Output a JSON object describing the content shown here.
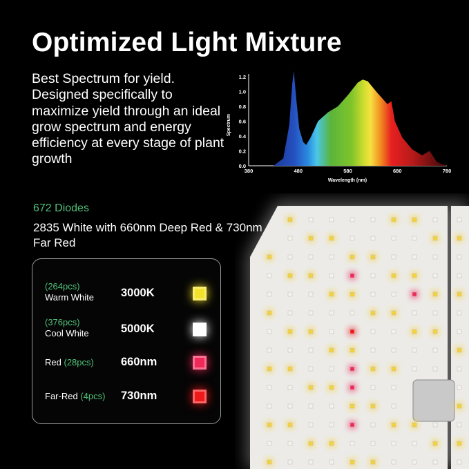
{
  "title": "Optimized Light Mixture",
  "description": "Best Spectrum for yield. Designed specifically to maximize yield through an ideal grow spectrum and energy efficiency at every stage of plant growth",
  "diodes": {
    "count_label": "672 Diodes",
    "detail": "2835 White with 660nm Deep Red & 730nm Far Red"
  },
  "legend": [
    {
      "count": "(264pcs)",
      "name": "Warm White",
      "value": "3000K",
      "color": "#f3e22a"
    },
    {
      "count": "(376pcs)",
      "name": "Cool White",
      "value": "5000K",
      "color": "#ffffff"
    },
    {
      "count": "(28pcs)",
      "name": "Red",
      "value": "660nm",
      "color": "#f0295a"
    },
    {
      "count": "(4pcs)",
      "name": "Far-Red",
      "value": "730nm",
      "color": "#f01818"
    }
  ],
  "colors": {
    "accent_green": "#4fc27a",
    "background": "#000000"
  },
  "chart_data": {
    "type": "area",
    "xlabel": "Wavelength (nm)",
    "ylabel": "Spectrum",
    "xlim": [
      380,
      780
    ],
    "ylim": [
      0,
      1.2
    ],
    "xticks": [
      "380",
      "480",
      "580",
      "680",
      "780"
    ],
    "yticks": [
      "0.0",
      "0.2",
      "0.4",
      "0.6",
      "0.8",
      "1.0",
      "1.2"
    ],
    "x": [
      430,
      450,
      462,
      468,
      471,
      476,
      482,
      490,
      496,
      505,
      520,
      540,
      560,
      580,
      600,
      610,
      620,
      640,
      660,
      668,
      675,
      690,
      710,
      730,
      745,
      760,
      780
    ],
    "y": [
      0.0,
      0.1,
      0.55,
      1.1,
      1.28,
      0.9,
      0.5,
      0.32,
      0.28,
      0.38,
      0.6,
      0.72,
      0.8,
      0.95,
      1.12,
      1.16,
      1.14,
      0.98,
      0.83,
      0.87,
      0.6,
      0.38,
      0.22,
      0.14,
      0.2,
      0.05,
      0.0
    ],
    "grid": false,
    "legend": "none"
  }
}
